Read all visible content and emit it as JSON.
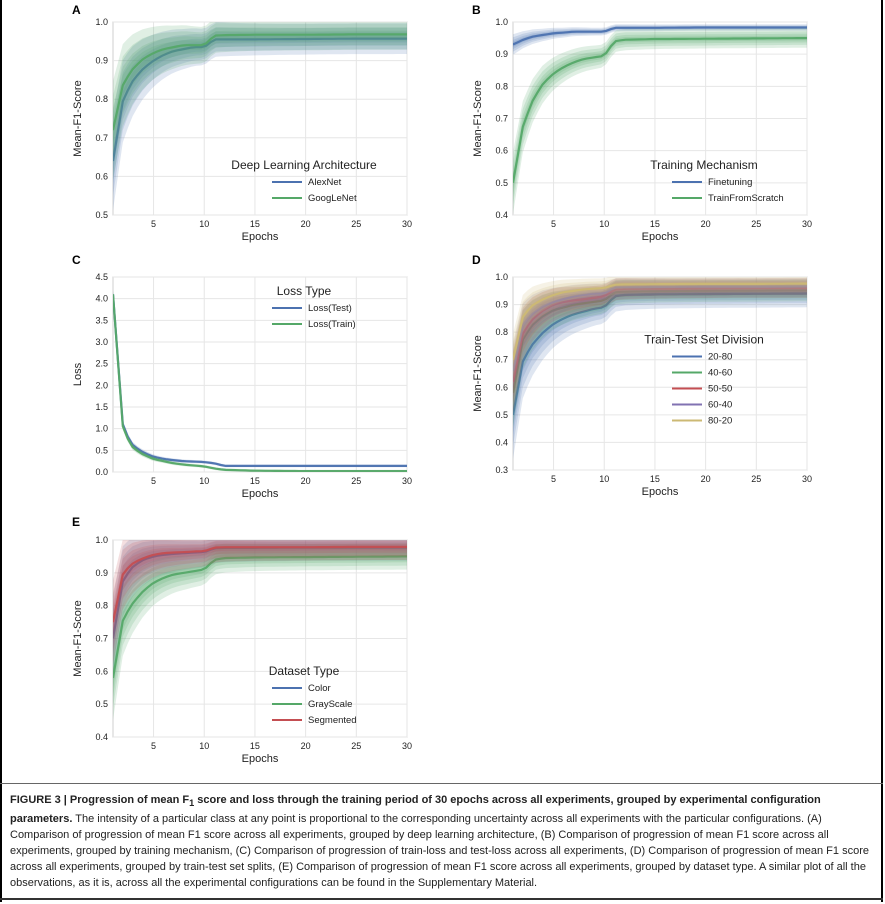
{
  "chart_data": [
    {
      "id": "A",
      "letter": "A",
      "type": "line",
      "xlabel": "Epochs",
      "ylabel": "Mean-F1-Score",
      "xlim": [
        1,
        30
      ],
      "ylim": [
        0.5,
        1.0
      ],
      "xticks": [
        5,
        10,
        15,
        20,
        25,
        30
      ],
      "yticks": [
        0.5,
        0.6,
        0.7,
        0.8,
        0.9,
        1.0
      ],
      "legend": {
        "title": "Deep Learning Architecture",
        "position": "lower-right"
      },
      "series": [
        {
          "name": "AlexNet",
          "color": "#4c72b0",
          "spread": 0.04,
          "x": [
            1,
            2,
            3,
            4,
            5,
            6,
            7,
            8,
            9,
            10,
            11,
            12,
            15,
            20,
            25,
            30
          ],
          "y": [
            0.64,
            0.8,
            0.85,
            0.88,
            0.9,
            0.915,
            0.925,
            0.93,
            0.935,
            0.935,
            0.955,
            0.955,
            0.955,
            0.956,
            0.957,
            0.957
          ]
        },
        {
          "name": "GoogLeNet",
          "color": "#55a868",
          "spread": 0.04,
          "x": [
            1,
            2,
            3,
            4,
            5,
            6,
            7,
            8,
            9,
            10,
            11,
            12,
            15,
            20,
            25,
            30
          ],
          "y": [
            0.72,
            0.84,
            0.88,
            0.905,
            0.92,
            0.93,
            0.935,
            0.94,
            0.94,
            0.94,
            0.965,
            0.966,
            0.967,
            0.967,
            0.968,
            0.968
          ]
        }
      ]
    },
    {
      "id": "B",
      "letter": "B",
      "type": "line",
      "xlabel": "Epochs",
      "ylabel": "Mean-F1-Score",
      "xlim": [
        1,
        30
      ],
      "ylim": [
        0.4,
        1.0
      ],
      "xticks": [
        5,
        10,
        15,
        20,
        25,
        30
      ],
      "yticks": [
        0.4,
        0.5,
        0.6,
        0.7,
        0.8,
        0.9,
        1.0
      ],
      "legend": {
        "title": "Training Mechanism",
        "position": "lower-right"
      },
      "series": [
        {
          "name": "Finetuning",
          "color": "#4c72b0",
          "spread": 0.01,
          "x": [
            1,
            2,
            3,
            4,
            5,
            6,
            7,
            8,
            9,
            10,
            11,
            12,
            15,
            20,
            25,
            30
          ],
          "y": [
            0.93,
            0.945,
            0.955,
            0.96,
            0.965,
            0.967,
            0.97,
            0.97,
            0.97,
            0.97,
            0.982,
            0.982,
            0.982,
            0.983,
            0.983,
            0.983
          ]
        },
        {
          "name": "TrainFromScratch",
          "color": "#55a868",
          "spread": 0.03,
          "x": [
            1,
            2,
            3,
            4,
            5,
            6,
            7,
            8,
            9,
            10,
            11,
            12,
            15,
            20,
            25,
            30
          ],
          "y": [
            0.5,
            0.68,
            0.76,
            0.81,
            0.84,
            0.86,
            0.875,
            0.885,
            0.89,
            0.895,
            0.94,
            0.945,
            0.947,
            0.948,
            0.949,
            0.95
          ]
        }
      ]
    },
    {
      "id": "C",
      "letter": "C",
      "type": "line",
      "xlabel": "Epochs",
      "ylabel": "Loss",
      "xlim": [
        1,
        30
      ],
      "ylim": [
        0.0,
        4.5
      ],
      "xticks": [
        5,
        10,
        15,
        20,
        25,
        30
      ],
      "yticks": [
        0.0,
        0.5,
        1.0,
        1.5,
        2.0,
        2.5,
        3.0,
        3.5,
        4.0,
        4.5
      ],
      "legend": {
        "title": "Loss Type",
        "position": "upper-right"
      },
      "series": [
        {
          "name": "Loss(Test)",
          "color": "#4c72b0",
          "spread": 0.03,
          "x": [
            1,
            2,
            3,
            4,
            5,
            6,
            7,
            8,
            9,
            10,
            11,
            12,
            15,
            20,
            25,
            30
          ],
          "y": [
            4.1,
            1.0,
            0.6,
            0.45,
            0.35,
            0.3,
            0.27,
            0.25,
            0.24,
            0.23,
            0.2,
            0.14,
            0.14,
            0.14,
            0.14,
            0.14
          ]
        },
        {
          "name": "Loss(Train)",
          "color": "#55a868",
          "spread": 0.03,
          "x": [
            1,
            2,
            3,
            4,
            5,
            6,
            7,
            8,
            9,
            10,
            11,
            12,
            15,
            20,
            25,
            30
          ],
          "y": [
            4.1,
            0.95,
            0.55,
            0.4,
            0.3,
            0.25,
            0.2,
            0.17,
            0.15,
            0.13,
            0.08,
            0.05,
            0.03,
            0.02,
            0.02,
            0.02
          ]
        }
      ]
    },
    {
      "id": "D",
      "letter": "D",
      "type": "line",
      "xlabel": "Epochs",
      "ylabel": "Mean-F1-Score",
      "xlim": [
        1,
        30
      ],
      "ylim": [
        0.3,
        1.0
      ],
      "xticks": [
        5,
        10,
        15,
        20,
        25,
        30
      ],
      "yticks": [
        0.3,
        0.4,
        0.5,
        0.6,
        0.7,
        0.8,
        0.9,
        1.0
      ],
      "legend": {
        "title": "Train-Test Set Division",
        "position": "center-right"
      },
      "series": [
        {
          "name": "20-80",
          "color": "#4c72b0",
          "spread": 0.05,
          "x": [
            1,
            2,
            3,
            4,
            5,
            6,
            7,
            8,
            9,
            10,
            11,
            12,
            15,
            20,
            25,
            30
          ],
          "y": [
            0.5,
            0.7,
            0.76,
            0.8,
            0.83,
            0.85,
            0.865,
            0.875,
            0.885,
            0.89,
            0.93,
            0.935,
            0.937,
            0.938,
            0.939,
            0.94
          ]
        },
        {
          "name": "40-60",
          "color": "#55a868",
          "spread": 0.04,
          "x": [
            1,
            2,
            3,
            4,
            5,
            6,
            7,
            8,
            9,
            10,
            11,
            12,
            15,
            20,
            25,
            30
          ],
          "y": [
            0.58,
            0.78,
            0.83,
            0.86,
            0.88,
            0.89,
            0.9,
            0.905,
            0.91,
            0.915,
            0.945,
            0.947,
            0.949,
            0.95,
            0.951,
            0.952
          ]
        },
        {
          "name": "50-50",
          "color": "#c44e52",
          "spread": 0.035,
          "x": [
            1,
            2,
            3,
            4,
            5,
            6,
            7,
            8,
            9,
            10,
            11,
            12,
            15,
            20,
            25,
            30
          ],
          "y": [
            0.62,
            0.8,
            0.85,
            0.88,
            0.9,
            0.91,
            0.915,
            0.92,
            0.925,
            0.93,
            0.955,
            0.957,
            0.958,
            0.959,
            0.96,
            0.96
          ]
        },
        {
          "name": "60-40",
          "color": "#8172b2",
          "spread": 0.03,
          "x": [
            1,
            2,
            3,
            4,
            5,
            6,
            7,
            8,
            9,
            10,
            11,
            12,
            15,
            20,
            25,
            30
          ],
          "y": [
            0.66,
            0.83,
            0.87,
            0.895,
            0.91,
            0.92,
            0.93,
            0.935,
            0.94,
            0.94,
            0.962,
            0.963,
            0.964,
            0.965,
            0.965,
            0.966
          ]
        },
        {
          "name": "80-20",
          "color": "#ccb974",
          "spread": 0.03,
          "x": [
            1,
            2,
            3,
            4,
            5,
            6,
            7,
            8,
            9,
            10,
            11,
            12,
            15,
            20,
            25,
            30
          ],
          "y": [
            0.7,
            0.86,
            0.9,
            0.92,
            0.935,
            0.945,
            0.95,
            0.955,
            0.958,
            0.96,
            0.972,
            0.973,
            0.974,
            0.975,
            0.975,
            0.976
          ]
        }
      ]
    },
    {
      "id": "E",
      "letter": "E",
      "type": "line",
      "xlabel": "Epochs",
      "ylabel": "Mean-F1-Score",
      "xlim": [
        1,
        30
      ],
      "ylim": [
        0.4,
        1.0
      ],
      "xticks": [
        5,
        10,
        15,
        20,
        25,
        30
      ],
      "yticks": [
        0.4,
        0.5,
        0.6,
        0.7,
        0.8,
        0.9,
        1.0
      ],
      "legend": {
        "title": "Dataset Type",
        "position": "lower-right"
      },
      "series": [
        {
          "name": "Color",
          "color": "#4c72b0",
          "spread": 0.04,
          "x": [
            1,
            2,
            3,
            4,
            5,
            6,
            7,
            8,
            9,
            10,
            11,
            12,
            15,
            20,
            25,
            30
          ],
          "y": [
            0.7,
            0.88,
            0.92,
            0.94,
            0.95,
            0.955,
            0.958,
            0.96,
            0.962,
            0.963,
            0.975,
            0.976,
            0.976,
            0.977,
            0.977,
            0.977
          ]
        },
        {
          "name": "GrayScale",
          "color": "#55a868",
          "spread": 0.04,
          "x": [
            1,
            2,
            3,
            4,
            5,
            6,
            7,
            8,
            9,
            10,
            11,
            12,
            15,
            20,
            25,
            30
          ],
          "y": [
            0.58,
            0.76,
            0.81,
            0.845,
            0.87,
            0.885,
            0.895,
            0.9,
            0.905,
            0.91,
            0.94,
            0.945,
            0.947,
            0.948,
            0.949,
            0.95
          ]
        },
        {
          "name": "Segmented",
          "color": "#c44e52",
          "spread": 0.04,
          "x": [
            1,
            2,
            3,
            4,
            5,
            6,
            7,
            8,
            9,
            10,
            11,
            12,
            15,
            20,
            25,
            30
          ],
          "y": [
            0.75,
            0.9,
            0.93,
            0.945,
            0.955,
            0.96,
            0.962,
            0.963,
            0.965,
            0.966,
            0.977,
            0.978,
            0.978,
            0.978,
            0.979,
            0.979
          ]
        }
      ]
    }
  ],
  "caption": {
    "lead": "FIGURE 3 | Progression of mean F",
    "lead_sub": "1",
    "lead_rest": " score and loss through the training period of 30 epochs across all experiments, grouped by experimental configuration parameters.",
    "body": "The intensity of a particular class at any point is proportional to the corresponding uncertainty across all experiments with the particular configurations. (A) Comparison of progression of mean F1 score across all experiments, grouped by deep learning architecture, (B) Comparison of progression of mean F1 score across all experiments, grouped by training mechanism, (C) Comparison of progression of train-loss and test-loss across all experiments, (D) Comparison of progression of mean F1 score across all experiments, grouped by train-test set splits, (E) Comparison of progression of mean F1 score across all experiments, grouped by dataset type. A similar plot of all the observations, as it is, across all the experimental configurations can be found in the Supplementary Material."
  }
}
